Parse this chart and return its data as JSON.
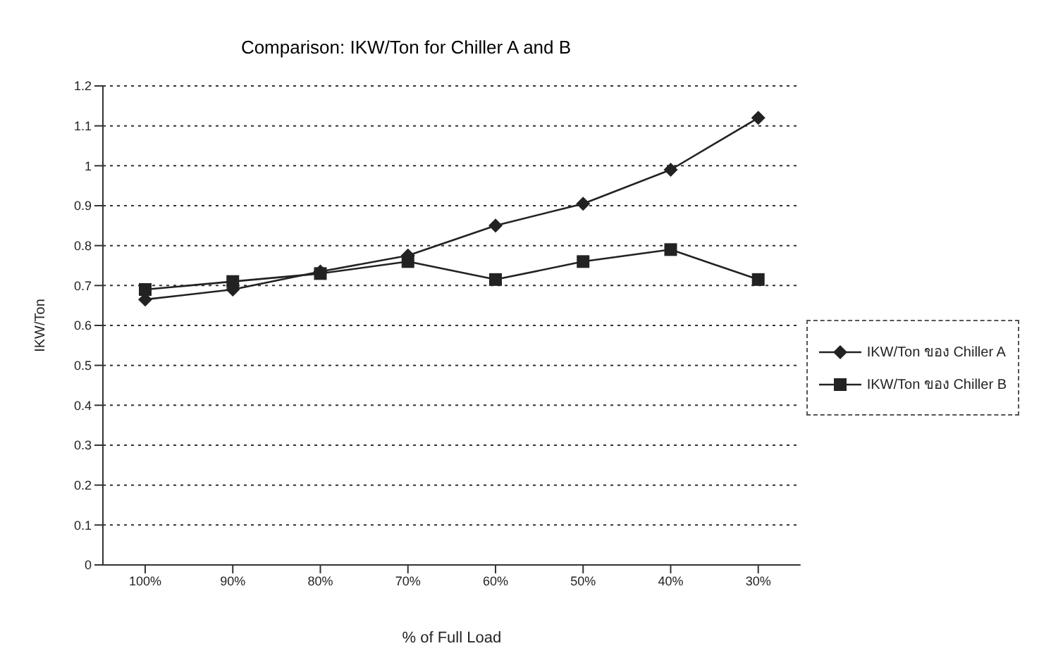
{
  "chart_data": {
    "type": "line",
    "title": "Comparison: IKW/Ton for Chiller A and B",
    "xlabel": "% of Full Load",
    "ylabel": "IKW/Ton",
    "categories": [
      "100%",
      "90%",
      "80%",
      "70%",
      "60%",
      "50%",
      "40%",
      "30%"
    ],
    "series": [
      {
        "name": "IKW/Ton ของ Chiller A",
        "color": "#222222",
        "marker": "diamond",
        "values": [
          0.665,
          0.69,
          0.735,
          0.775,
          0.85,
          0.905,
          0.99,
          1.12
        ]
      },
      {
        "name": "IKW/Ton ของ Chiller B",
        "color": "#222222",
        "marker": "square",
        "values": [
          0.69,
          0.71,
          0.73,
          0.76,
          0.715,
          0.76,
          0.79,
          0.715
        ]
      }
    ],
    "ylim": [
      0,
      1.2
    ],
    "yticks": [
      0,
      0.1,
      0.2,
      0.3,
      0.4,
      0.5,
      0.6,
      0.7,
      0.8,
      0.9,
      1,
      1.1,
      1.2
    ],
    "grid": "y",
    "legend": "right",
    "line_style": "solid"
  }
}
